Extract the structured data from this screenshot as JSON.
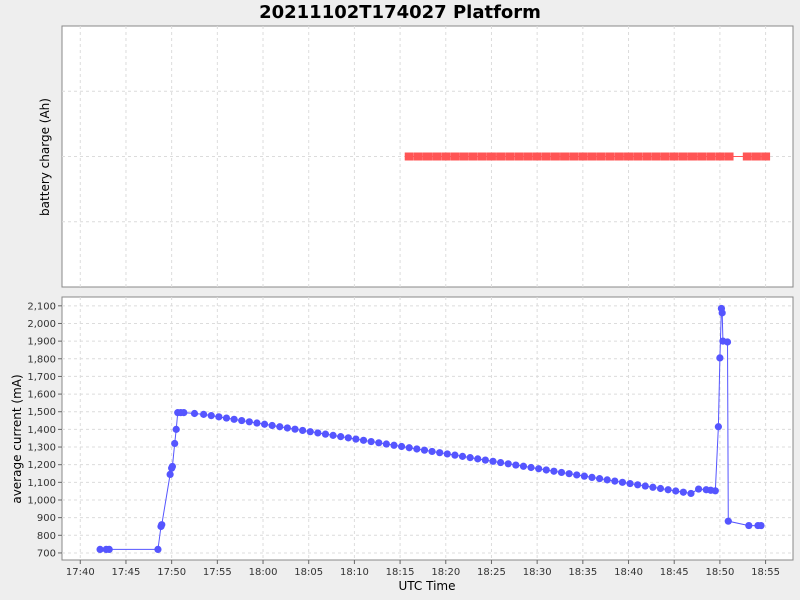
{
  "chart_data": [
    {
      "type": "line",
      "title": "20211102T174027 Platform",
      "ylabel": "battery charge (Ah)",
      "color": "#ff5555",
      "series": [
        {
          "x": [
            "18:16",
            "18:17",
            "18:18",
            "18:19",
            "18:20",
            "18:21",
            "18:22",
            "18:23",
            "18:24",
            "18:25",
            "18:26",
            "18:27",
            "18:28",
            "18:29",
            "18:30",
            "18:31",
            "18:32",
            "18:33",
            "18:34",
            "18:35",
            "18:36",
            "18:37",
            "18:38",
            "18:39",
            "18:40",
            "18:41",
            "18:42",
            "18:43",
            "18:44",
            "18:45",
            "18:46",
            "18:47",
            "18:48",
            "18:49",
            "18:50",
            "18:51",
            "18:53",
            "18:54",
            "18:55"
          ],
          "y": [
            0,
            0,
            0,
            0,
            0,
            0,
            0,
            0,
            0,
            0,
            0,
            0,
            0,
            0,
            0,
            0,
            0,
            0,
            0,
            0,
            0,
            0,
            0,
            0,
            0,
            0,
            0,
            0,
            0,
            0,
            0,
            0,
            0,
            0,
            0,
            0,
            0,
            0,
            0
          ]
        }
      ]
    },
    {
      "type": "line",
      "xlabel": "UTC Time",
      "ylabel": "average current (mA)",
      "ylim": [
        660,
        2150
      ],
      "xlim": [
        "17:38",
        "18:58"
      ],
      "color": "#5555ff",
      "x_ticks": [
        "17:40",
        "17:45",
        "17:50",
        "17:55",
        "18:00",
        "18:05",
        "18:10",
        "18:15",
        "18:20",
        "18:25",
        "18:30",
        "18:35",
        "18:40",
        "18:45",
        "18:50",
        "18:55"
      ],
      "y_ticks": [
        "700",
        "800",
        "900",
        "1,000",
        "1,100",
        "1,200",
        "1,300",
        "1,400",
        "1,500",
        "1,600",
        "1,700",
        "1,800",
        "1,900",
        "2,000",
        "2,100"
      ],
      "y_tick_values": [
        700,
        800,
        900,
        1000,
        1100,
        1200,
        1300,
        1400,
        1500,
        1600,
        1700,
        1800,
        1900,
        2000,
        2100
      ],
      "series": [
        {
          "x": [
            "17:42:10",
            "17:42:50",
            "17:43:10",
            "17:48:30",
            "17:48:50",
            "17:48:55",
            "17:49:50",
            "17:50:00",
            "17:50:05",
            "17:50:20",
            "17:50:30",
            "17:50:40",
            "17:51:00",
            "17:51:20",
            "17:52:30",
            "17:53:30",
            "17:54:20",
            "17:55:10",
            "17:56:00",
            "17:56:50",
            "17:57:40",
            "17:58:30",
            "17:59:20",
            "18:00:10",
            "18:01:00",
            "18:01:50",
            "18:02:40",
            "18:03:30",
            "18:04:20",
            "18:05:10",
            "18:06:00",
            "18:06:50",
            "18:07:40",
            "18:08:30",
            "18:09:20",
            "18:10:10",
            "18:11:00",
            "18:11:50",
            "18:12:40",
            "18:13:30",
            "18:14:20",
            "18:15:10",
            "18:16:00",
            "18:16:50",
            "18:17:40",
            "18:18:30",
            "18:19:20",
            "18:20:10",
            "18:21:00",
            "18:21:50",
            "18:22:40",
            "18:23:30",
            "18:24:20",
            "18:25:10",
            "18:26:00",
            "18:26:50",
            "18:27:40",
            "18:28:30",
            "18:29:20",
            "18:30:10",
            "18:31:00",
            "18:31:50",
            "18:32:40",
            "18:33:30",
            "18:34:20",
            "18:35:10",
            "18:36:00",
            "18:36:50",
            "18:37:40",
            "18:38:30",
            "18:39:20",
            "18:40:10",
            "18:41:00",
            "18:41:50",
            "18:42:40",
            "18:43:30",
            "18:44:20",
            "18:45:10",
            "18:46:00",
            "18:46:50",
            "18:47:40",
            "18:48:30",
            "18:49:00",
            "18:49:30",
            "18:49:50",
            "18:50:00",
            "18:50:10",
            "18:50:15",
            "18:50:20",
            "18:50:50",
            "18:50:55",
            "18:53:10",
            "18:54:10",
            "18:54:30"
          ],
          "y": [
            720,
            720,
            720,
            720,
            850,
            860,
            1145,
            1180,
            1190,
            1320,
            1400,
            1495,
            1495,
            1495,
            1490,
            1485,
            1478,
            1471,
            1464,
            1457,
            1450,
            1443,
            1436,
            1429,
            1422,
            1415,
            1408,
            1401,
            1394,
            1387,
            1380,
            1373,
            1366,
            1359,
            1352,
            1345,
            1338,
            1331,
            1324,
            1317,
            1310,
            1303,
            1296,
            1289,
            1282,
            1275,
            1268,
            1261,
            1254,
            1247,
            1240,
            1233,
            1226,
            1219,
            1212,
            1205,
            1198,
            1191,
            1184,
            1177,
            1170,
            1163,
            1156,
            1149,
            1142,
            1135,
            1128,
            1121,
            1114,
            1107,
            1100,
            1093,
            1086,
            1079,
            1072,
            1065,
            1058,
            1051,
            1044,
            1037,
            1062,
            1058,
            1055,
            1052,
            1415,
            1805,
            2085,
            2060,
            1900,
            1895,
            880,
            855,
            855,
            855
          ]
        }
      ]
    }
  ]
}
